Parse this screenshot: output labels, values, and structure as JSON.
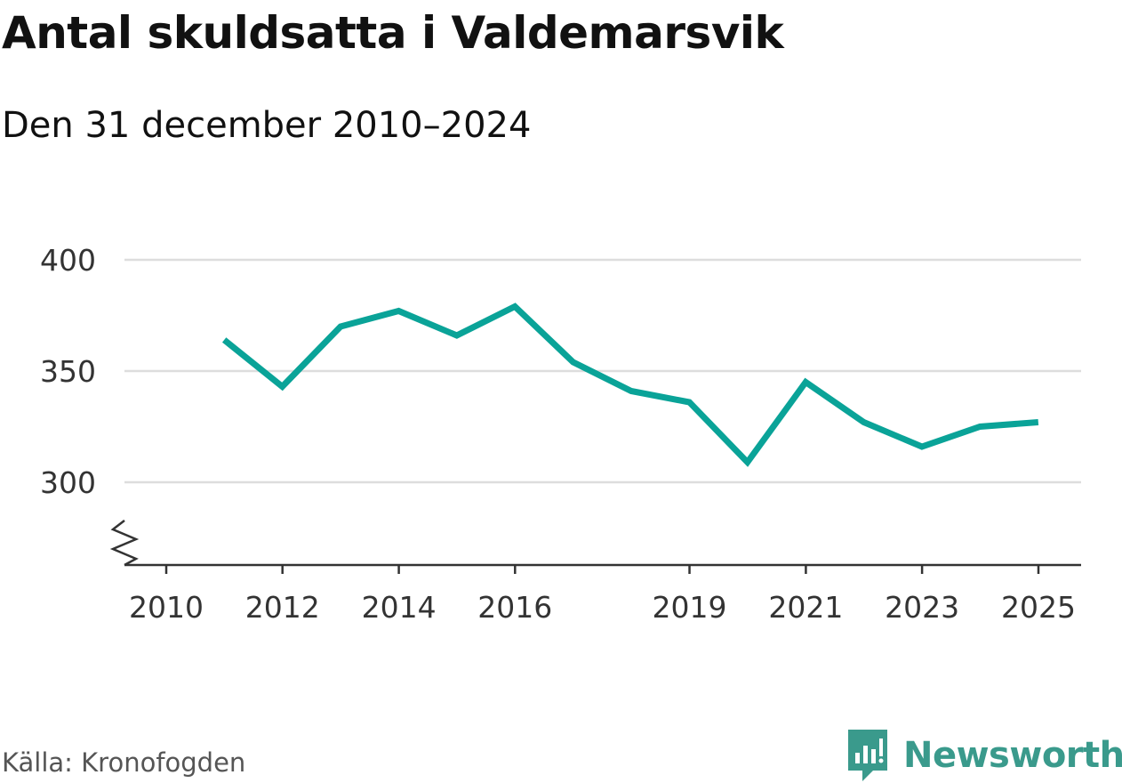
{
  "header": {
    "title": "Antal skuldsatta i Valdemarsvik",
    "subtitle": "Den 31 december 2010–2024"
  },
  "footer": {
    "source": "Källa: Kronofogden",
    "brand": "Newsworthy"
  },
  "colors": {
    "line": "#0aa398",
    "grid": "#dddddd",
    "axis": "#333333",
    "brand": "#3a9a8c"
  },
  "chart_data": {
    "type": "line",
    "title": "Antal skuldsatta i Valdemarsvik",
    "subtitle": "Den 31 december 2010–2024",
    "xlabel": "",
    "ylabel": "",
    "x_ticks": [
      "2010",
      "2012",
      "2014",
      "2016",
      "2019",
      "2021",
      "2023",
      "2025"
    ],
    "y_ticks": [
      "300",
      "350",
      "400"
    ],
    "ylim": [
      300,
      400
    ],
    "y_axis_broken": true,
    "grid": true,
    "series": [
      {
        "x": [
          "2010-12-31",
          "2011-12-31",
          "2012-12-31",
          "2013-12-31",
          "2014-12-31",
          "2015-12-31",
          "2016-12-31",
          "2017-12-31",
          "2018-12-31",
          "2019-12-31",
          "2020-12-31",
          "2021-12-31",
          "2022-12-31",
          "2023-12-31",
          "2024-12-31"
        ],
        "values": [
          364,
          343,
          370,
          377,
          366,
          379,
          354,
          341,
          336,
          309,
          345,
          327,
          316,
          325,
          327
        ]
      }
    ]
  }
}
